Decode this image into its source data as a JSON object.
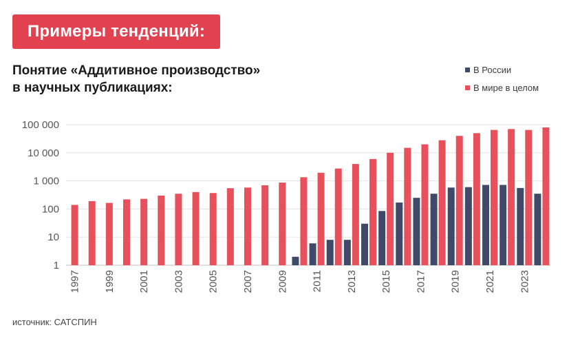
{
  "badge": {
    "label": "Примеры тенденций:"
  },
  "subtitle": {
    "line1": "Понятие «Аддитивное производство»",
    "line2": "в научных публикациях:"
  },
  "source": "источник: САТСПИН",
  "colors": {
    "russia": "#3e4a68",
    "world": "#e8505b",
    "badge": "#e2424f"
  },
  "chart_data": {
    "type": "bar",
    "yscale": "log",
    "ylim": [
      1,
      100000
    ],
    "yticks": [
      1,
      10,
      100,
      1000,
      10000,
      100000
    ],
    "ytick_labels": [
      "1",
      "10",
      "100",
      "1 000",
      "10 000",
      "100 000"
    ],
    "categories": [
      1997,
      1998,
      1999,
      2000,
      2001,
      2002,
      2003,
      2004,
      2005,
      2006,
      2007,
      2008,
      2009,
      2010,
      2011,
      2012,
      2013,
      2014,
      2015,
      2016,
      2017,
      2018,
      2019,
      2020,
      2021,
      2022,
      2023,
      2024
    ],
    "xtick_labels": [
      "1997",
      "1999",
      "2001",
      "2003",
      "2005",
      "2007",
      "2009",
      "2011",
      "2013",
      "2015",
      "2017",
      "2019",
      "2021",
      "2023"
    ],
    "grid": "horizontal",
    "legend_position": "top-right",
    "series": [
      {
        "name": "В России",
        "color": "#3e4a68",
        "values": [
          null,
          null,
          null,
          null,
          null,
          null,
          null,
          null,
          null,
          null,
          null,
          null,
          null,
          2,
          6,
          8,
          8,
          30,
          85,
          170,
          250,
          350,
          580,
          600,
          720,
          720,
          560,
          350
        ]
      },
      {
        "name": "В мире в целом",
        "color": "#e8505b",
        "values": [
          140,
          190,
          165,
          220,
          230,
          300,
          350,
          400,
          370,
          550,
          580,
          700,
          870,
          1350,
          1950,
          2750,
          4000,
          6000,
          10000,
          15000,
          20000,
          28000,
          40000,
          50000,
          65000,
          70000,
          65000,
          80000
        ]
      }
    ]
  }
}
